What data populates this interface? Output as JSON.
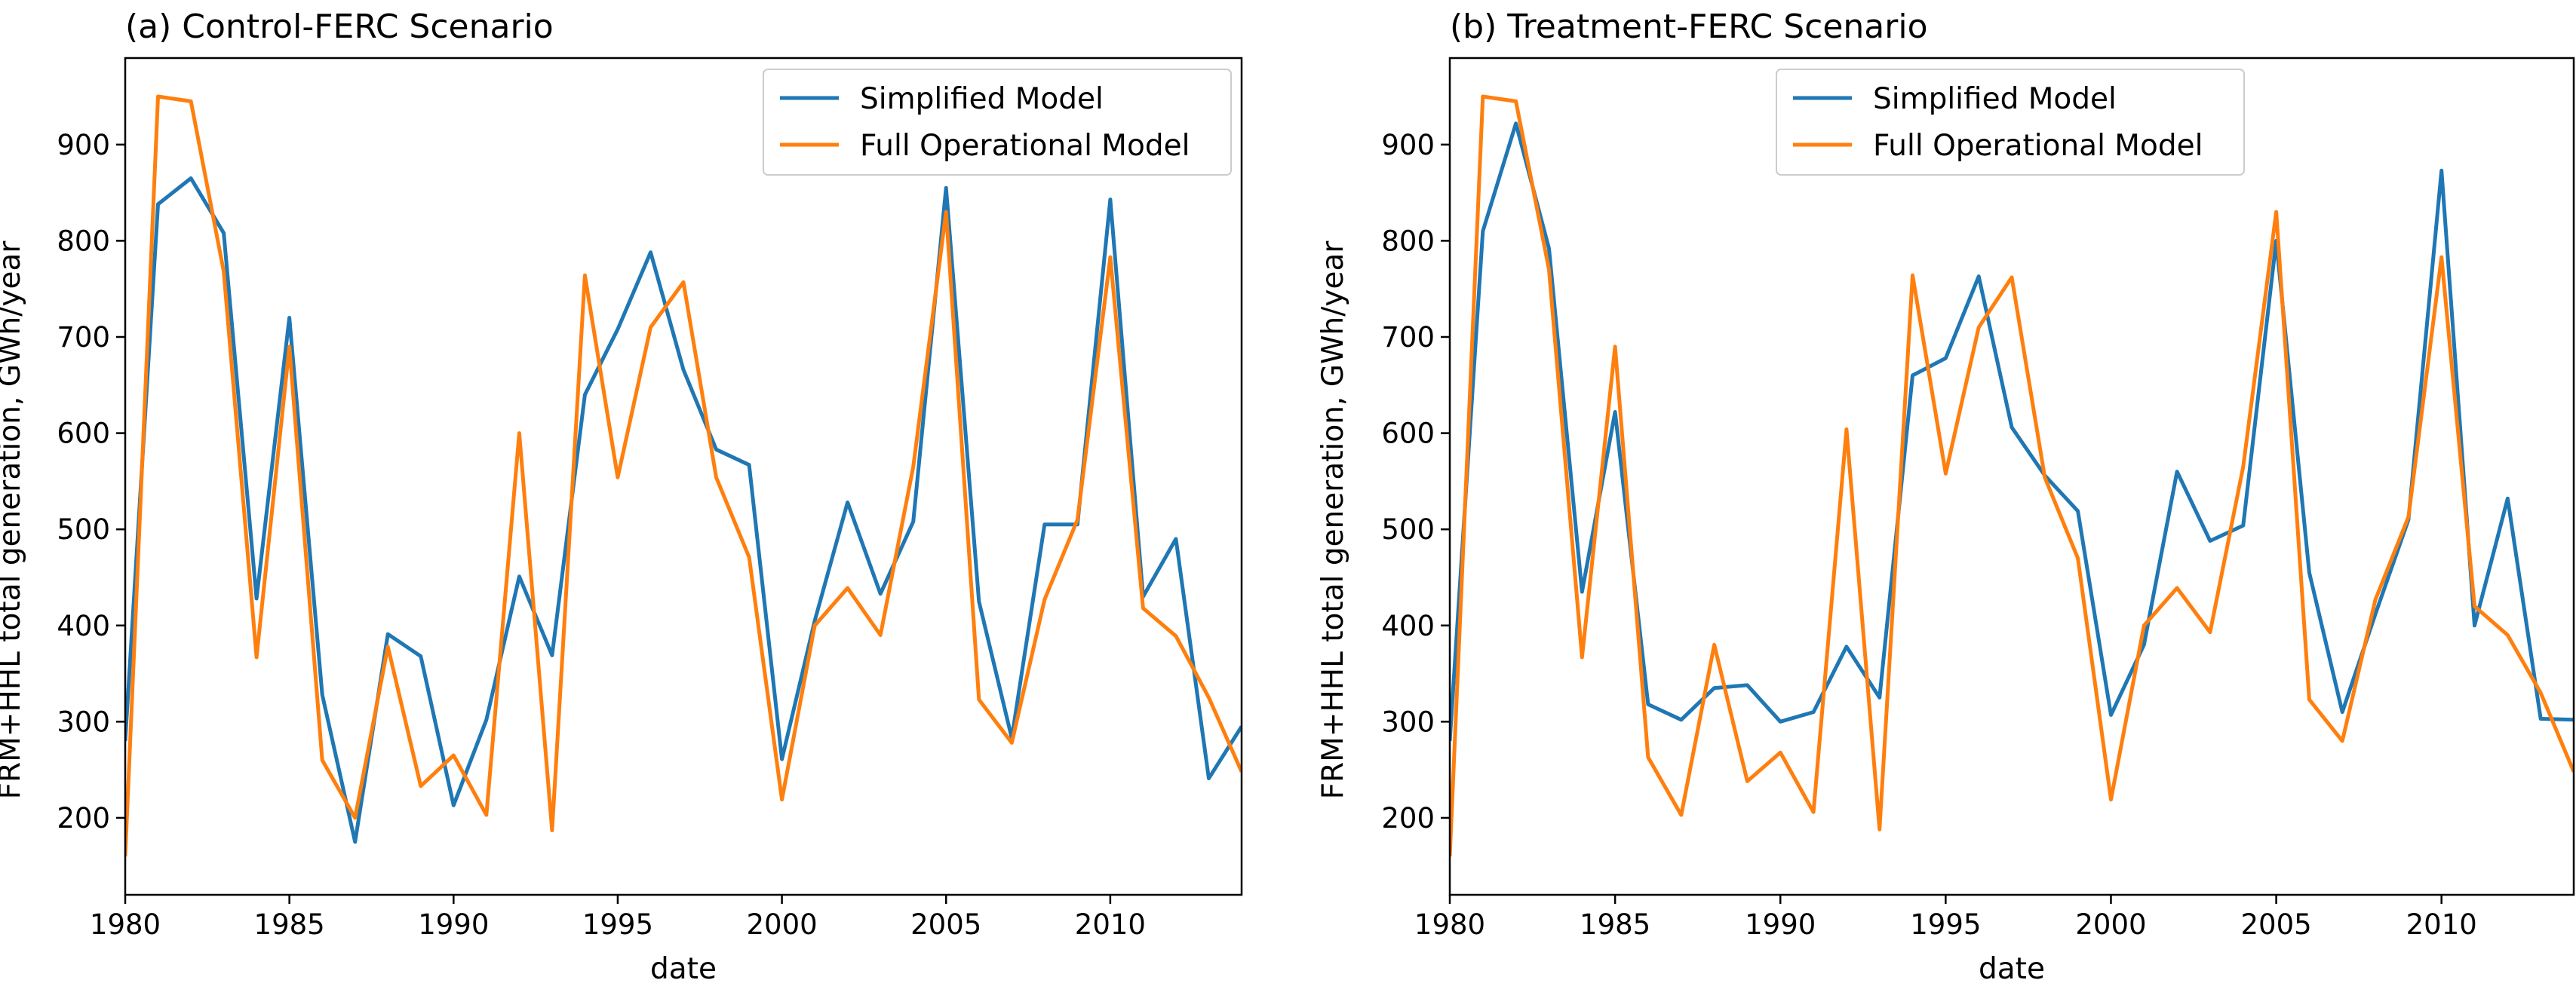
{
  "colors": {
    "simplified": "#1f77b4",
    "full": "#ff7f0e"
  },
  "chart_data": [
    {
      "type": "line",
      "title": "(a) Control-FERC Scenario",
      "xlabel": "date",
      "ylabel": "FRM+HHL total generation, GWh/year",
      "xlim": [
        1980,
        2014
      ],
      "ylim": [
        120,
        990
      ],
      "xticks": [
        1980,
        1985,
        1990,
        1995,
        2000,
        2005,
        2010
      ],
      "yticks": [
        200,
        300,
        400,
        500,
        600,
        700,
        800,
        900
      ],
      "grid": false,
      "legend_position": "top-right",
      "x": [
        1980,
        1981,
        1982,
        1983,
        1984,
        1985,
        1986,
        1987,
        1988,
        1989,
        1990,
        1991,
        1992,
        1993,
        1994,
        1995,
        1996,
        1997,
        1998,
        1999,
        2000,
        2001,
        2002,
        2003,
        2004,
        2005,
        2006,
        2007,
        2008,
        2009,
        2010,
        2011,
        2012,
        2013,
        2014
      ],
      "series": [
        {
          "name": "Simplified Model",
          "color": "#1f77b4",
          "values": [
            280,
            838,
            865,
            808,
            428,
            720,
            328,
            175,
            391,
            368,
            213,
            302,
            451,
            369,
            640,
            708,
            788,
            666,
            583,
            567,
            261,
            405,
            528,
            433,
            508,
            855,
            425,
            283,
            505,
            505,
            843,
            430,
            490,
            241,
            295
          ]
        },
        {
          "name": "Full Operational Model",
          "color": "#ff7f0e",
          "values": [
            160,
            950,
            945,
            768,
            367,
            690,
            260,
            200,
            378,
            233,
            265,
            203,
            600,
            187,
            764,
            554,
            710,
            757,
            554,
            471,
            219,
            400,
            439,
            390,
            565,
            830,
            323,
            278,
            427,
            510,
            783,
            418,
            389,
            325,
            248
          ]
        }
      ]
    },
    {
      "type": "line",
      "title": "(b) Treatment-FERC Scenario",
      "xlabel": "date",
      "ylabel": "FRM+HHL total generation, GWh/year",
      "xlim": [
        1980,
        2014
      ],
      "ylim": [
        120,
        990
      ],
      "xticks": [
        1980,
        1985,
        1990,
        1995,
        2000,
        2005,
        2010
      ],
      "yticks": [
        200,
        300,
        400,
        500,
        600,
        700,
        800,
        900
      ],
      "grid": false,
      "legend_position": "top-center",
      "x": [
        1980,
        1981,
        1982,
        1983,
        1984,
        1985,
        1986,
        1987,
        1988,
        1989,
        1990,
        1991,
        1992,
        1993,
        1994,
        1995,
        1996,
        1997,
        1998,
        1999,
        2000,
        2001,
        2002,
        2003,
        2004,
        2005,
        2006,
        2007,
        2008,
        2009,
        2010,
        2011,
        2012,
        2013,
        2014
      ],
      "series": [
        {
          "name": "Simplified Model",
          "color": "#1f77b4",
          "values": [
            280,
            810,
            922,
            792,
            435,
            622,
            318,
            302,
            335,
            338,
            300,
            310,
            378,
            325,
            660,
            678,
            763,
            606,
            556,
            519,
            307,
            380,
            560,
            488,
            504,
            800,
            455,
            310,
            412,
            510,
            873,
            400,
            532,
            303,
            302
          ]
        },
        {
          "name": "Full Operational Model",
          "color": "#ff7f0e",
          "values": [
            160,
            950,
            945,
            770,
            367,
            690,
            263,
            203,
            380,
            238,
            268,
            206,
            604,
            188,
            764,
            558,
            710,
            762,
            554,
            470,
            219,
            400,
            439,
            393,
            565,
            830,
            323,
            280,
            427,
            513,
            783,
            420,
            390,
            330,
            248
          ]
        }
      ]
    }
  ]
}
